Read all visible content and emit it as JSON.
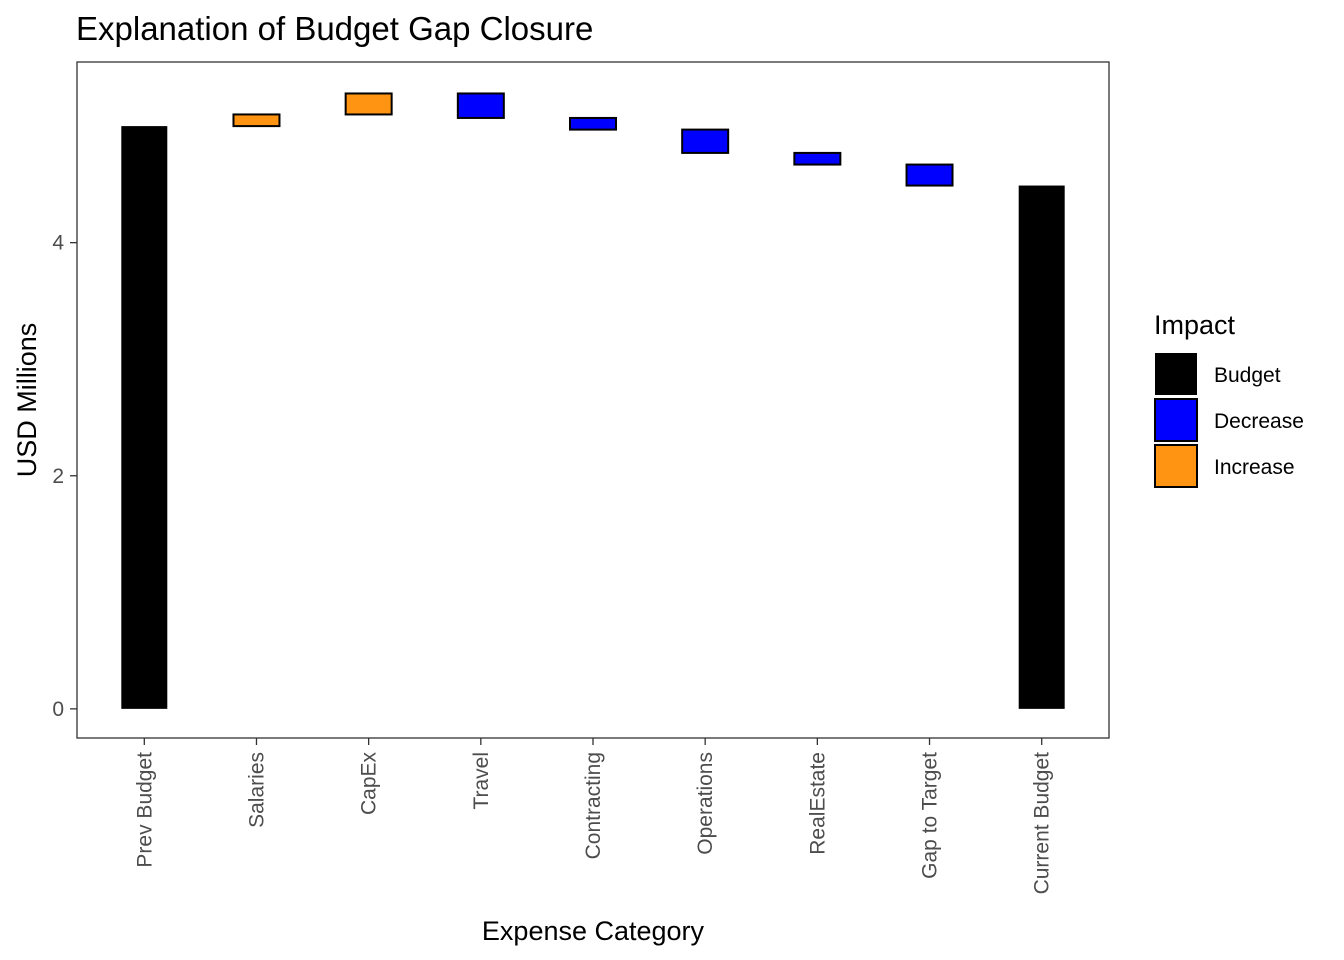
{
  "chart_data": {
    "type": "bar",
    "subtype": "waterfall",
    "title": "Explanation of Budget Gap Closure",
    "xlabel": "Expense Category",
    "ylabel": "USD Millions",
    "ylim": [
      -0.25,
      5.55
    ],
    "yticks": [
      0,
      2,
      4
    ],
    "grid": false,
    "legend_position": "right",
    "categories": [
      "Prev Budget",
      "Salaries",
      "CapEx",
      "Travel",
      "Contracting",
      "Operations",
      "RealEstate",
      "Gap to Target",
      "Current Budget"
    ],
    "bars": [
      {
        "category": "Prev Budget",
        "impact": "Budget",
        "start": 0,
        "end": 5.0
      },
      {
        "category": "Salaries",
        "impact": "Increase",
        "start": 5.0,
        "end": 5.1
      },
      {
        "category": "CapEx",
        "impact": "Increase",
        "start": 5.1,
        "end": 5.28
      },
      {
        "category": "Travel",
        "impact": "Decrease",
        "start": 5.28,
        "end": 5.07
      },
      {
        "category": "Contracting",
        "impact": "Decrease",
        "start": 5.07,
        "end": 4.97
      },
      {
        "category": "Operations",
        "impact": "Decrease",
        "start": 4.97,
        "end": 4.77
      },
      {
        "category": "RealEstate",
        "impact": "Decrease",
        "start": 4.77,
        "end": 4.67
      },
      {
        "category": "Gap to Target",
        "impact": "Decrease",
        "start": 4.67,
        "end": 4.49
      },
      {
        "category": "Current Budget",
        "impact": "Budget",
        "start": 0,
        "end": 4.49
      }
    ],
    "legend": {
      "title": "Impact",
      "entries": [
        {
          "label": "Budget",
          "color": "#000000"
        },
        {
          "label": "Decrease",
          "color": "#0000ff"
        },
        {
          "label": "Increase",
          "color": "#ff9412"
        }
      ]
    }
  }
}
